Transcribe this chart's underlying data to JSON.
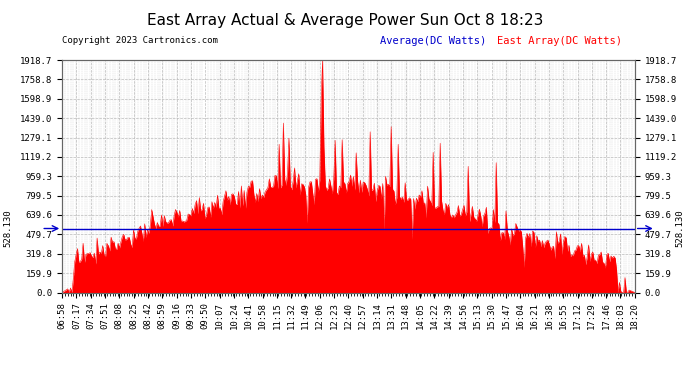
{
  "title": "East Array Actual & Average Power Sun Oct 8 18:23",
  "copyright_text": "Copyright 2023 Cartronics.com",
  "legend_average": "Average(DC Watts)",
  "legend_east": "East Array(DC Watts)",
  "average_value": 528.13,
  "y_max": 1918.7,
  "y_min": 0.0,
  "y_ticks": [
    0.0,
    159.9,
    319.8,
    479.7,
    639.6,
    799.5,
    959.3,
    1119.2,
    1279.1,
    1439.0,
    1598.9,
    1758.8,
    1918.7
  ],
  "x_labels": [
    "06:58",
    "07:17",
    "07:34",
    "07:51",
    "08:08",
    "08:25",
    "08:42",
    "08:59",
    "09:16",
    "09:33",
    "09:50",
    "10:07",
    "10:24",
    "10:41",
    "10:58",
    "11:15",
    "11:32",
    "11:49",
    "12:06",
    "12:23",
    "12:40",
    "12:57",
    "13:14",
    "13:31",
    "13:48",
    "14:05",
    "14:22",
    "14:39",
    "14:56",
    "15:13",
    "15:30",
    "15:47",
    "16:04",
    "16:21",
    "16:38",
    "16:55",
    "17:12",
    "17:29",
    "17:46",
    "18:03",
    "18:20"
  ],
  "background_color": "#ffffff",
  "plot_bg_color": "#ffffff",
  "grid_color": "#bbbbbb",
  "fill_color": "#ff0000",
  "line_color": "#ff0000",
  "average_line_color": "#0000cc",
  "title_fontsize": 11,
  "tick_fontsize": 6.5,
  "label_528": "528.130"
}
